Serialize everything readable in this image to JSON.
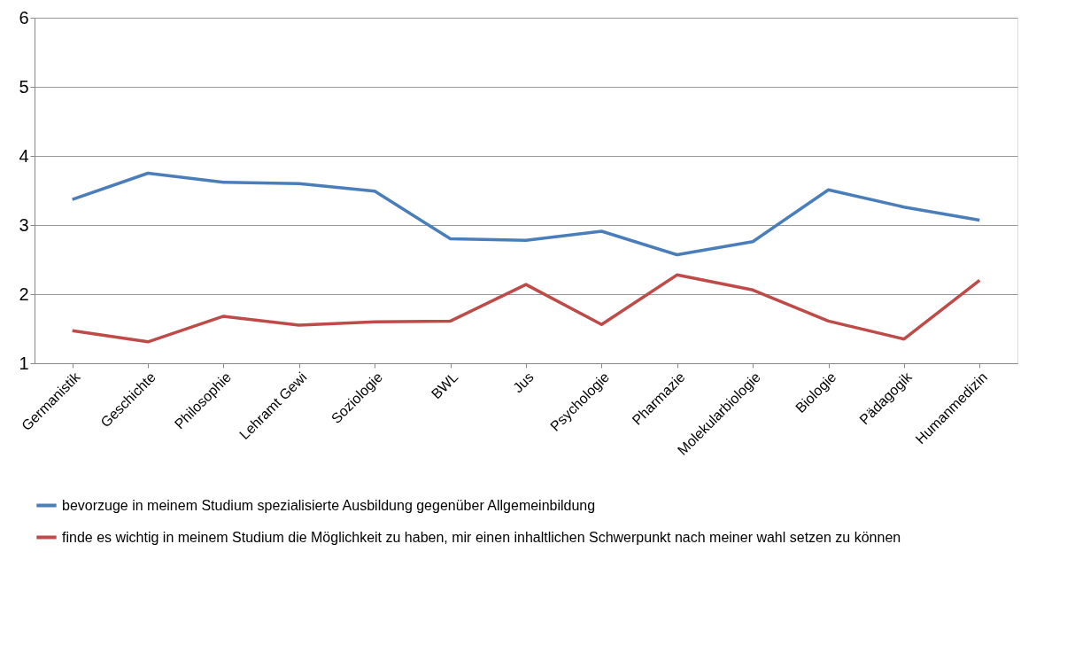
{
  "chart_data": {
    "type": "line",
    "categories": [
      "Germanistik",
      "Geschichte",
      "Philosophie",
      "Lehramt Gewi",
      "Soziologie",
      "BWL",
      "Jus",
      "Psychologie",
      "Pharmazie",
      "Molekularbiologie",
      "Biologie",
      "Pädagogik",
      "Humanmedizin"
    ],
    "series": [
      {
        "name": "bevorzuge in meinem Studium spezialisierte Ausbildung gegenüber Allgemeinbildung",
        "color": "#4a7ebb",
        "values": [
          3.37,
          3.75,
          3.62,
          3.6,
          3.49,
          2.8,
          2.78,
          2.91,
          2.57,
          2.76,
          3.51,
          3.26,
          3.07
        ]
      },
      {
        "name": "finde es wichtig in meinem Studium die Möglichkeit zu haben, mir einen inhaltlichen Schwerpunkt nach meiner wahl setzen zu können",
        "color": "#be4b48",
        "values": [
          1.47,
          1.31,
          1.68,
          1.55,
          1.6,
          1.61,
          2.14,
          1.56,
          2.28,
          2.06,
          1.61,
          1.35,
          2.2
        ]
      }
    ],
    "ylim": [
      1,
      6
    ],
    "yticks": [
      1,
      2,
      3,
      4,
      5,
      6
    ],
    "grid": "y",
    "legend": "bottom",
    "marker": "none",
    "line_style": "solid"
  }
}
